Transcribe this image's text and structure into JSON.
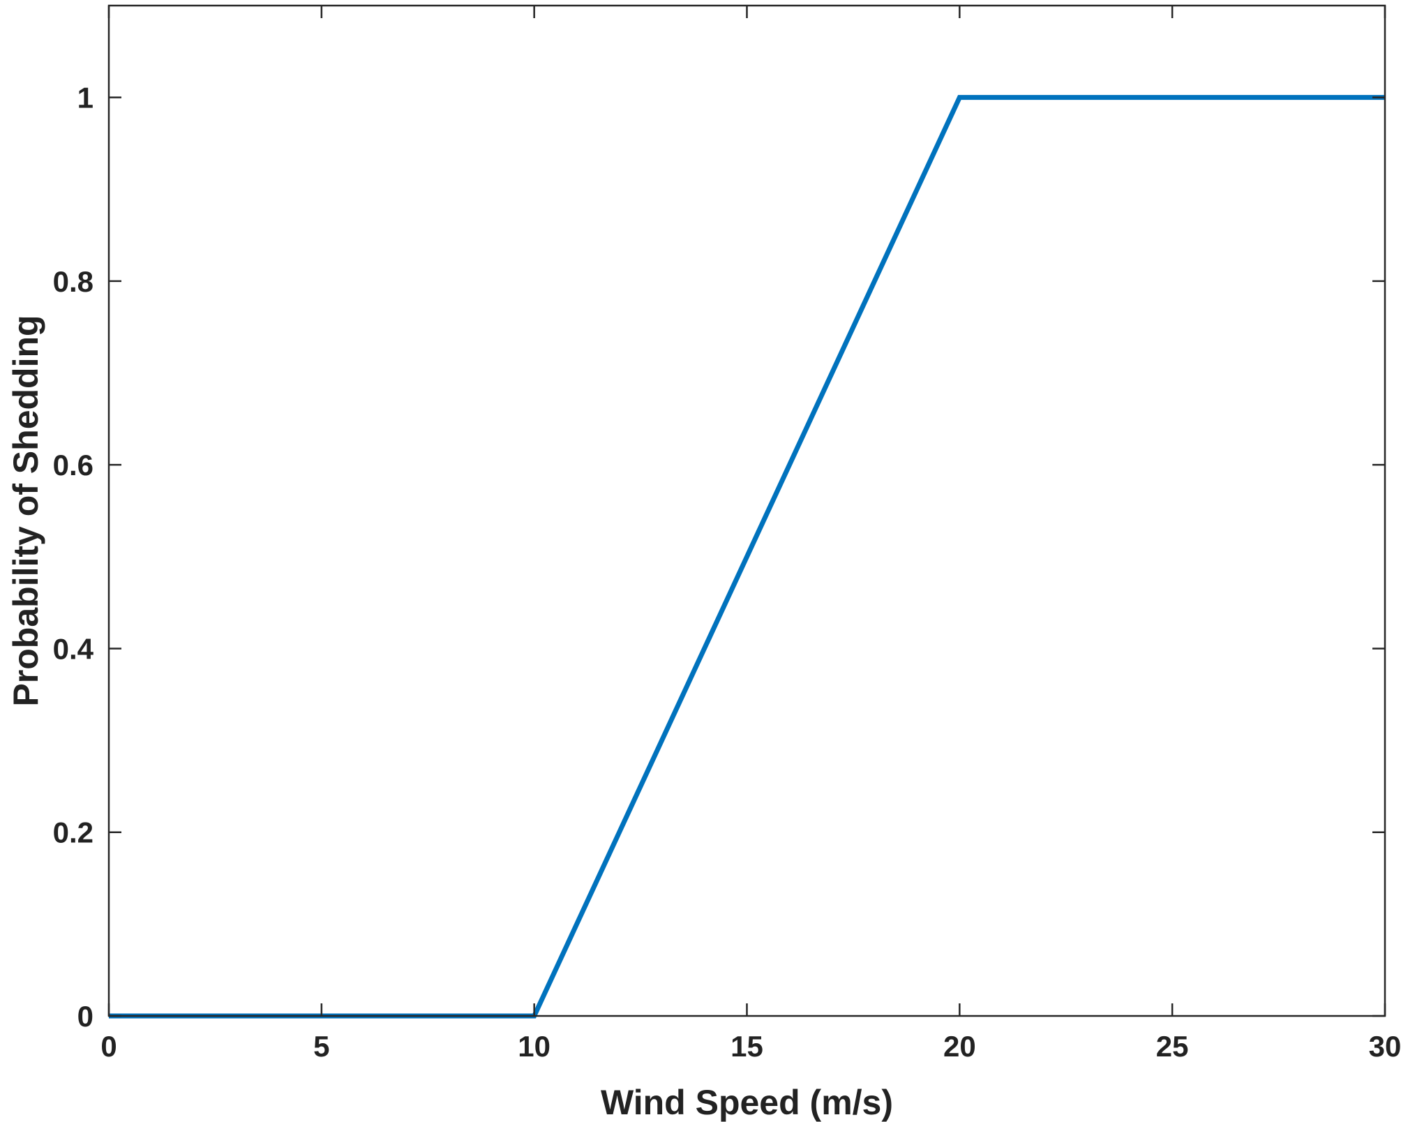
{
  "chart_data": {
    "type": "line",
    "xlabel": "Wind Speed (m/s)",
    "ylabel": "Probability of Shedding",
    "xlim": [
      0,
      30
    ],
    "ylim": [
      0,
      1.1
    ],
    "xticks": [
      0,
      5,
      10,
      15,
      20,
      25,
      30
    ],
    "xtick_labels": [
      "0",
      "5",
      "10",
      "15",
      "20",
      "25",
      "30"
    ],
    "yticks": [
      0,
      0.2,
      0.4,
      0.6,
      0.8,
      1
    ],
    "ytick_labels": [
      "0",
      "0.2",
      "0.4",
      "0.6",
      "0.8",
      "1"
    ],
    "grid": false,
    "series": [
      {
        "color": "#0072BD",
        "x": [
          0,
          10,
          20,
          30
        ],
        "y": [
          0,
          0,
          1,
          1
        ]
      }
    ]
  }
}
